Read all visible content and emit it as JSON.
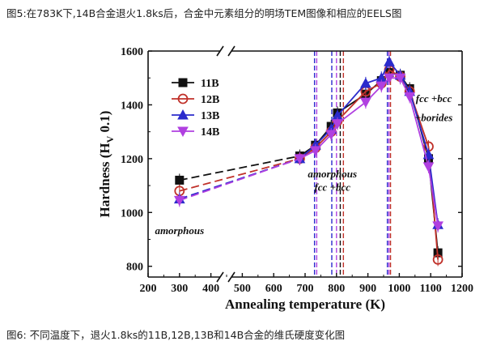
{
  "captions": {
    "top": "图5:在783K下,14B合金退火1.8ks后，合金中元素组分的明场TEM图像和相应的EELS图",
    "bottom": "图6: 不同温度下，退火1.8ks的11B,12B,13B和14B合金的维氏硬度变化图"
  },
  "chart_data": {
    "type": "line",
    "xlabel": "Annealing temperature (K)",
    "ylabel": "Hardness (H",
    "ylabel_sub": "V",
    "ylabel_tail": " 0.1)",
    "xlim": [
      200,
      1200
    ],
    "ylim": [
      760,
      1600
    ],
    "x_ticks": [
      200,
      300,
      400,
      500,
      600,
      700,
      800,
      900,
      1000,
      1100,
      1200
    ],
    "y_ticks": [
      800,
      1000,
      1200,
      1400,
      1600
    ],
    "grid": false,
    "axis_break": "x between 300 and 400",
    "legend_position": "upper-left",
    "series": [
      {
        "name": "11B",
        "color": "#111111",
        "marker": "square-filled",
        "x": [
          300,
          683,
          733,
          783,
          803,
          893,
          943,
          968,
          1003,
          1033,
          1093,
          1123
        ],
        "y": [
          1120,
          1210,
          1250,
          1320,
          1370,
          1440,
          1490,
          1520,
          1510,
          1460,
          1200,
          850
        ]
      },
      {
        "name": "12B",
        "color": "#c0312a",
        "marker": "circle-open",
        "x": [
          300,
          683,
          733,
          783,
          803,
          893,
          943,
          968,
          1003,
          1033,
          1093,
          1123
        ],
        "y": [
          1080,
          1200,
          1240,
          1300,
          1340,
          1450,
          1480,
          1530,
          1505,
          1450,
          1245,
          825
        ]
      },
      {
        "name": "13B",
        "color": "#2b2bcc",
        "marker": "triangle-up",
        "x": [
          300,
          683,
          733,
          783,
          803,
          893,
          943,
          968,
          1003,
          1033,
          1093,
          1123
        ],
        "y": [
          1050,
          1200,
          1250,
          1310,
          1360,
          1480,
          1500,
          1560,
          1510,
          1450,
          1215,
          955
        ]
      },
      {
        "name": "14B",
        "color": "#b040e0",
        "marker": "triangle-down",
        "x": [
          300,
          683,
          733,
          783,
          803,
          893,
          943,
          968,
          1003,
          1033,
          1093,
          1123
        ],
        "y": [
          1045,
          1200,
          1230,
          1290,
          1330,
          1410,
          1470,
          1500,
          1500,
          1430,
          1170,
          950
        ]
      }
    ],
    "vertical_dashed_lines": {
      "x": [
        730,
        737,
        785,
        800,
        812,
        822,
        962,
        967,
        972
      ],
      "colors": [
        "#2b2bcc",
        "#b040e0",
        "#2b2bcc",
        "#b040e0",
        "#111111",
        "#c0312a",
        "#2b2bcc",
        "#b040e0",
        "#c0312a"
      ]
    },
    "annotations": [
      {
        "text": "amorphous",
        "x": 300,
        "y": 920
      },
      {
        "text": "amorphous",
        "x": 787,
        "y": 1130
      },
      {
        "text": "fcc +bcc",
        "x": 787,
        "y": 1080
      },
      {
        "text": "fcc +bcc",
        "x": 1110,
        "y": 1410
      },
      {
        "text": "+borides",
        "x": 1110,
        "y": 1340
      }
    ]
  }
}
